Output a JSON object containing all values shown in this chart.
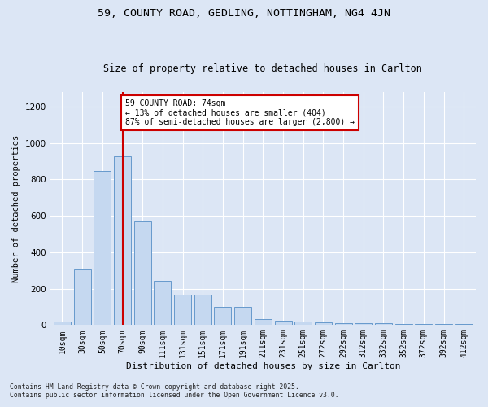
{
  "title1": "59, COUNTY ROAD, GEDLING, NOTTINGHAM, NG4 4JN",
  "title2": "Size of property relative to detached houses in Carlton",
  "xlabel": "Distribution of detached houses by size in Carlton",
  "ylabel": "Number of detached properties",
  "bar_color": "#c5d8f0",
  "bar_edge_color": "#6699cc",
  "background_color": "#dce6f5",
  "grid_color": "#ffffff",
  "fig_background": "#dce6f5",
  "categories": [
    "10sqm",
    "30sqm",
    "50sqm",
    "70sqm",
    "90sqm",
    "111sqm",
    "131sqm",
    "151sqm",
    "171sqm",
    "191sqm",
    "211sqm",
    "231sqm",
    "251sqm",
    "272sqm",
    "292sqm",
    "312sqm",
    "332sqm",
    "352sqm",
    "372sqm",
    "392sqm",
    "412sqm"
  ],
  "values": [
    20,
    305,
    848,
    928,
    570,
    245,
    165,
    165,
    100,
    100,
    35,
    22,
    20,
    15,
    10,
    12,
    10,
    8,
    8,
    5,
    5
  ],
  "ylim": [
    0,
    1280
  ],
  "yticks": [
    0,
    200,
    400,
    600,
    800,
    1000,
    1200
  ],
  "property_line_x": 3.0,
  "annotation_text": "59 COUNTY ROAD: 74sqm\n← 13% of detached houses are smaller (404)\n87% of semi-detached houses are larger (2,800) →",
  "annotation_box_color": "#ffffff",
  "annotation_box_edge_color": "#cc0000",
  "red_line_color": "#cc0000",
  "footer1": "Contains HM Land Registry data © Crown copyright and database right 2025.",
  "footer2": "Contains public sector information licensed under the Open Government Licence v3.0.",
  "title1_fontsize": 9.5,
  "title2_fontsize": 8.5,
  "ylabel_fontsize": 7.5,
  "xlabel_fontsize": 8,
  "tick_fontsize": 7,
  "footer_fontsize": 5.8
}
